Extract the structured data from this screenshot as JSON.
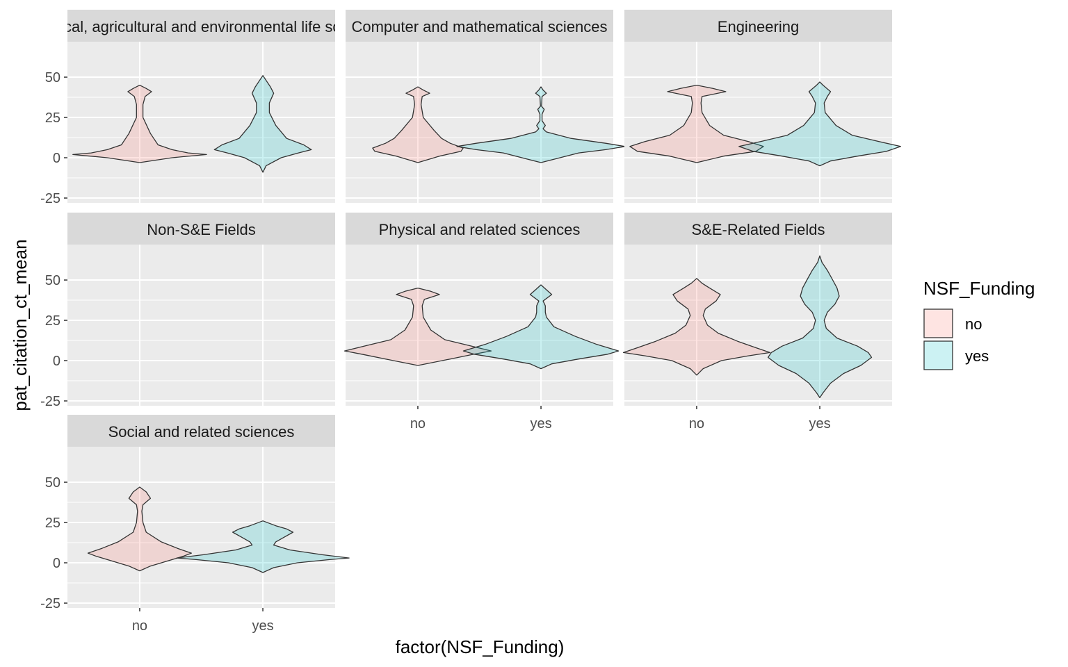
{
  "chart_data": {
    "type": "violin",
    "xlabel": "factor(NSF_Funding)",
    "ylabel": "pat_citation_ct_mean",
    "categories": [
      "no",
      "yes"
    ],
    "ylim": [
      -28,
      72
    ],
    "yticks": [
      -25,
      0,
      25,
      50
    ],
    "grid": true,
    "facet_layout": "3 columns, shared axes",
    "legend": {
      "title": "NSF_Funding",
      "position": "right",
      "items": [
        {
          "label": "no",
          "color": "#f8766d"
        },
        {
          "label": "yes",
          "color": "#00bfc4"
        }
      ]
    },
    "colors": {
      "panel_bg": "#ebebeb",
      "strip_bg": "#d9d9d9",
      "grid": "#ffffff",
      "violin_stroke": "#333333",
      "fill_opacity": 0.2
    },
    "facets": [
      {
        "title": "Biological, agricultural and environmental life sciences",
        "violins": [
          {
            "group": "no",
            "y_range": [
              -3,
              45
            ],
            "profile": [
              [
                -3,
                0
              ],
              [
                0,
                0.3
              ],
              [
                2,
                0.62
              ],
              [
                3,
                0.45
              ],
              [
                5,
                0.3
              ],
              [
                8,
                0.17
              ],
              [
                15,
                0.1
              ],
              [
                25,
                0.03
              ],
              [
                33,
                0.03
              ],
              [
                38,
                0.05
              ],
              [
                41,
                0.11
              ],
              [
                43,
                0.06
              ],
              [
                45,
                0
              ]
            ]
          },
          {
            "group": "yes",
            "y_range": [
              -9,
              51
            ],
            "profile": [
              [
                -9,
                0
              ],
              [
                -5,
                0.03
              ],
              [
                0,
                0.17
              ],
              [
                3,
                0.33
              ],
              [
                5,
                0.45
              ],
              [
                8,
                0.38
              ],
              [
                12,
                0.22
              ],
              [
                20,
                0.12
              ],
              [
                28,
                0.06
              ],
              [
                34,
                0.06
              ],
              [
                40,
                0.1
              ],
              [
                44,
                0.07
              ],
              [
                48,
                0.03
              ],
              [
                51,
                0
              ]
            ]
          }
        ]
      },
      {
        "title": "Computer and mathematical sciences",
        "violins": [
          {
            "group": "no",
            "y_range": [
              -3,
              44
            ],
            "profile": [
              [
                -3,
                0
              ],
              [
                1,
                0.2
              ],
              [
                4,
                0.4
              ],
              [
                6,
                0.42
              ],
              [
                9,
                0.3
              ],
              [
                12,
                0.22
              ],
              [
                17,
                0.15
              ],
              [
                25,
                0.05
              ],
              [
                33,
                0.03
              ],
              [
                38,
                0.04
              ],
              [
                40,
                0.11
              ],
              [
                42,
                0.05
              ],
              [
                44,
                0
              ]
            ]
          },
          {
            "group": "yes",
            "y_range": [
              -3,
              44
            ],
            "profile": [
              [
                -3,
                0
              ],
              [
                3,
                0.35
              ],
              [
                5,
                0.6
              ],
              [
                7,
                0.78
              ],
              [
                9,
                0.6
              ],
              [
                12,
                0.28
              ],
              [
                16,
                0.05
              ],
              [
                18,
                0.02
              ],
              [
                20,
                0.04
              ],
              [
                23,
                0.01
              ],
              [
                27,
                0.01
              ],
              [
                30,
                0.03
              ],
              [
                32,
                0.005
              ],
              [
                38,
                0.01
              ],
              [
                40,
                0.05
              ],
              [
                42,
                0.02
              ],
              [
                44,
                0
              ]
            ]
          }
        ]
      },
      {
        "title": "Engineering",
        "violins": [
          {
            "group": "no",
            "y_range": [
              -3,
              45
            ],
            "profile": [
              [
                -3,
                0
              ],
              [
                1,
                0.25
              ],
              [
                4,
                0.55
              ],
              [
                7,
                0.62
              ],
              [
                10,
                0.48
              ],
              [
                14,
                0.25
              ],
              [
                20,
                0.12
              ],
              [
                28,
                0.05
              ],
              [
                34,
                0.04
              ],
              [
                38,
                0.05
              ],
              [
                41,
                0.27
              ],
              [
                43,
                0.15
              ],
              [
                45,
                0
              ]
            ]
          },
          {
            "group": "yes",
            "y_range": [
              -5,
              47
            ],
            "profile": [
              [
                -5,
                0
              ],
              [
                -2,
                0.1
              ],
              [
                1,
                0.35
              ],
              [
                4,
                0.62
              ],
              [
                7,
                0.75
              ],
              [
                10,
                0.55
              ],
              [
                14,
                0.3
              ],
              [
                20,
                0.15
              ],
              [
                28,
                0.05
              ],
              [
                34,
                0.04
              ],
              [
                38,
                0.07
              ],
              [
                41,
                0.1
              ],
              [
                45,
                0.03
              ],
              [
                47,
                0
              ]
            ]
          }
        ]
      },
      {
        "title": "Non-S&E Fields",
        "violins": []
      },
      {
        "title": "Physical and related sciences",
        "violins": [
          {
            "group": "no",
            "y_range": [
              -3,
              45
            ],
            "profile": [
              [
                -3,
                0
              ],
              [
                1,
                0.3
              ],
              [
                4,
                0.52
              ],
              [
                6,
                0.68
              ],
              [
                9,
                0.5
              ],
              [
                13,
                0.25
              ],
              [
                19,
                0.12
              ],
              [
                27,
                0.05
              ],
              [
                34,
                0.04
              ],
              [
                38,
                0.06
              ],
              [
                41,
                0.2
              ],
              [
                43,
                0.12
              ],
              [
                45,
                0
              ]
            ]
          },
          {
            "group": "yes",
            "y_range": [
              -5,
              47
            ],
            "profile": [
              [
                -5,
                0
              ],
              [
                -2,
                0.1
              ],
              [
                1,
                0.35
              ],
              [
                4,
                0.62
              ],
              [
                6,
                0.72
              ],
              [
                10,
                0.52
              ],
              [
                15,
                0.32
              ],
              [
                21,
                0.12
              ],
              [
                27,
                0.05
              ],
              [
                30,
                0.04
              ],
              [
                34,
                0.04
              ],
              [
                37,
                0.02
              ],
              [
                41,
                0.1
              ],
              [
                44,
                0.05
              ],
              [
                47,
                0
              ]
            ]
          }
        ]
      },
      {
        "title": "S&E-Related Fields",
        "violins": [
          {
            "group": "no",
            "y_range": [
              -9,
              51
            ],
            "profile": [
              [
                -9,
                0
              ],
              [
                -5,
                0.06
              ],
              [
                0,
                0.23
              ],
              [
                3,
                0.48
              ],
              [
                5,
                0.68
              ],
              [
                8,
                0.55
              ],
              [
                12,
                0.38
              ],
              [
                17,
                0.2
              ],
              [
                22,
                0.1
              ],
              [
                28,
                0.06
              ],
              [
                32,
                0.08
              ],
              [
                37,
                0.18
              ],
              [
                41,
                0.22
              ],
              [
                45,
                0.12
              ],
              [
                48,
                0.05
              ],
              [
                51,
                0
              ]
            ]
          },
          {
            "group": "yes",
            "y_range": [
              -23,
              65
            ],
            "profile": [
              [
                -23,
                0
              ],
              [
                -20,
                0.03
              ],
              [
                -14,
                0.1
              ],
              [
                -8,
                0.22
              ],
              [
                -3,
                0.38
              ],
              [
                2,
                0.48
              ],
              [
                5,
                0.45
              ],
              [
                9,
                0.35
              ],
              [
                14,
                0.16
              ],
              [
                20,
                0.06
              ],
              [
                25,
                0.04
              ],
              [
                30,
                0.07
              ],
              [
                35,
                0.14
              ],
              [
                40,
                0.18
              ],
              [
                45,
                0.16
              ],
              [
                50,
                0.12
              ],
              [
                56,
                0.07
              ],
              [
                61,
                0.02
              ],
              [
                65,
                0
              ]
            ]
          }
        ]
      },
      {
        "title": "Social and related sciences",
        "violins": [
          {
            "group": "no",
            "y_range": [
              -5,
              47
            ],
            "profile": [
              [
                -5,
                0
              ],
              [
                -2,
                0.1
              ],
              [
                1,
                0.25
              ],
              [
                4,
                0.4
              ],
              [
                6,
                0.48
              ],
              [
                9,
                0.35
              ],
              [
                13,
                0.2
              ],
              [
                19,
                0.06
              ],
              [
                25,
                0.03
              ],
              [
                32,
                0.02
              ],
              [
                36,
                0.03
              ],
              [
                40,
                0.1
              ],
              [
                44,
                0.06
              ],
              [
                47,
                0
              ]
            ]
          },
          {
            "group": "yes",
            "y_range": [
              -6,
              26
            ],
            "profile": [
              [
                -6,
                0
              ],
              [
                -3,
                0.1
              ],
              [
                0,
                0.32
              ],
              [
                2,
                0.62
              ],
              [
                3,
                0.8
              ],
              [
                5,
                0.55
              ],
              [
                8,
                0.25
              ],
              [
                11,
                0.1
              ],
              [
                13,
                0.12
              ],
              [
                16,
                0.2
              ],
              [
                19,
                0.28
              ],
              [
                21,
                0.22
              ],
              [
                23,
                0.12
              ],
              [
                26,
                0
              ]
            ]
          }
        ]
      }
    ]
  }
}
